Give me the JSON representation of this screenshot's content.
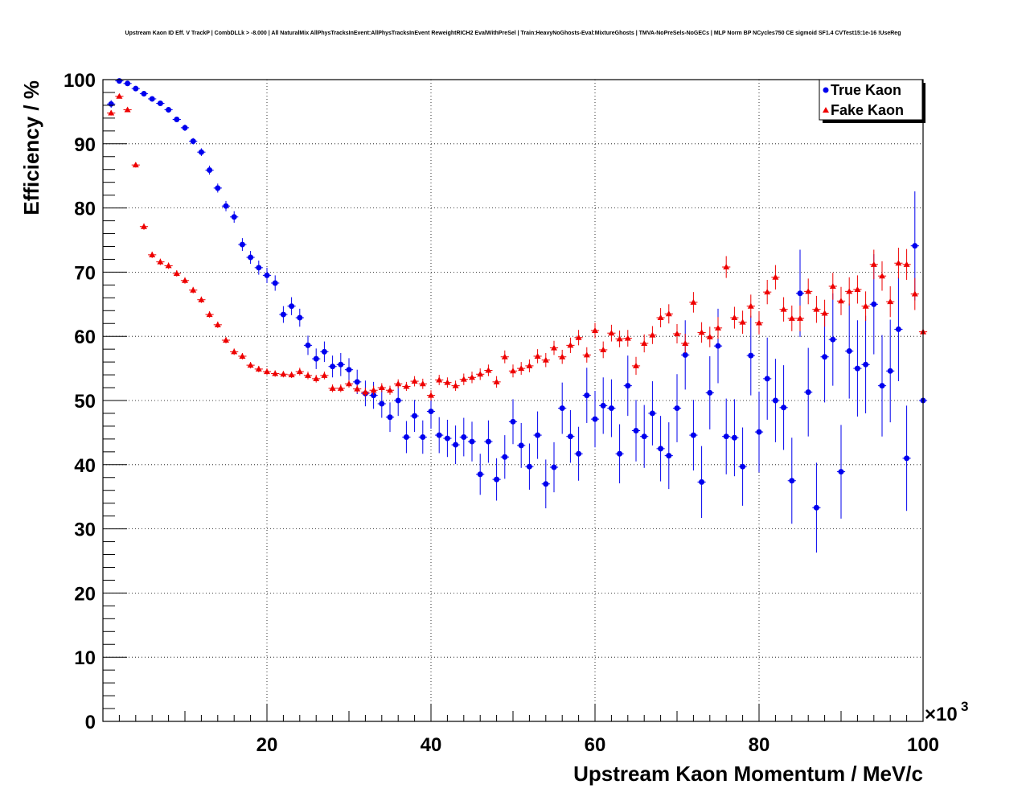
{
  "chart_data": {
    "type": "scatter",
    "title": "Upstream Kaon ID Eff. V TrackP | CombDLLk > -8.000 | All NaturalMix AllPhysTracksInEvent:AllPhysTracksInEvent ReweightRICH2 EvalWithPreSel | Train:HeavyNoGhosts-Eval:MixtureGhosts | TMVA-NoPreSels-NoGECs | MLP Norm BP NCycles750 CE sigmoid SF1.4 CVTest15:1e-16 !UseReg",
    "xlabel": "Upstream Kaon Momentum / MeV/c",
    "ylabel": "Efficiency / %",
    "x_multiplier": "×10",
    "x_multiplier_exp": "3",
    "xlim": [
      0,
      100
    ],
    "ylim": [
      0,
      100
    ],
    "x_ticks": [
      20,
      40,
      60,
      80,
      100
    ],
    "y_ticks": [
      0,
      10,
      20,
      30,
      40,
      50,
      60,
      70,
      80,
      90,
      100
    ],
    "grid": true,
    "legend_position": "top-right",
    "series": [
      {
        "name": "True Kaon",
        "color": "#0000ee",
        "marker": "circle",
        "x": [
          1,
          2,
          3,
          4,
          5,
          6,
          7,
          8,
          9,
          10,
          11,
          12,
          13,
          14,
          15,
          16,
          17,
          18,
          19,
          20,
          21,
          22,
          23,
          24,
          25,
          26,
          27,
          28,
          29,
          30,
          31,
          32,
          33,
          34,
          35,
          36,
          37,
          38,
          39,
          40,
          41,
          42,
          43,
          44,
          45,
          46,
          47,
          48,
          49,
          50,
          51,
          52,
          53,
          54,
          55,
          56,
          57,
          58,
          59,
          60,
          61,
          62,
          63,
          64,
          65,
          66,
          67,
          68,
          69,
          70,
          71,
          72,
          73,
          74,
          75,
          76,
          77,
          78,
          79,
          80,
          81,
          82,
          83,
          84,
          85,
          86,
          87,
          88,
          89,
          90,
          91,
          92,
          93,
          94,
          95,
          96,
          97,
          98,
          99,
          100
        ],
        "y": [
          96.2,
          99.8,
          99.4,
          98.6,
          97.8,
          97.0,
          96.3,
          95.3,
          93.8,
          92.5,
          90.4,
          88.7,
          85.9,
          83.1,
          80.3,
          78.6,
          74.3,
          72.3,
          70.7,
          69.5,
          68.3,
          63.4,
          64.7,
          62.9,
          58.6,
          56.5,
          57.6,
          55.3,
          55.6,
          54.8,
          52.9,
          51.1,
          50.8,
          49.5,
          47.4,
          50.0,
          44.3,
          47.6,
          44.3,
          48.3,
          44.6,
          44.1,
          43.1,
          44.3,
          43.6,
          38.5,
          43.6,
          37.7,
          41.2,
          46.7,
          43.0,
          39.7,
          44.6,
          37.0,
          39.6,
          48.8,
          44.4,
          41.7,
          50.8,
          47.1,
          49.2,
          48.8,
          41.7,
          52.3,
          45.3,
          44.4,
          48.0,
          42.5,
          41.4,
          48.8,
          57.1,
          44.6,
          37.3,
          51.2,
          58.5,
          44.4,
          44.2,
          39.7,
          57.0,
          45.1,
          53.4,
          50.0,
          48.9,
          37.5,
          66.7,
          51.3,
          33.3,
          56.8,
          59.5,
          38.9,
          57.7,
          55.0,
          55.6,
          65.0,
          52.3,
          54.6,
          61.1,
          41.0,
          74.1,
          50.0
        ],
        "err": [
          0.6,
          0.3,
          0.3,
          0.3,
          0.3,
          0.4,
          0.4,
          0.4,
          0.4,
          0.5,
          0.5,
          0.6,
          0.7,
          0.7,
          0.8,
          0.9,
          1.0,
          1.0,
          1.1,
          1.2,
          1.2,
          1.3,
          1.4,
          1.4,
          1.5,
          1.6,
          1.6,
          1.7,
          1.8,
          1.8,
          1.9,
          2.0,
          2.1,
          2.2,
          2.3,
          2.4,
          2.5,
          2.5,
          2.6,
          2.7,
          2.8,
          2.9,
          3.0,
          3.0,
          3.1,
          3.2,
          3.3,
          3.3,
          3.4,
          3.5,
          3.5,
          3.6,
          3.7,
          3.8,
          3.9,
          4.0,
          4.1,
          4.2,
          4.3,
          4.4,
          4.4,
          4.5,
          4.6,
          4.7,
          4.8,
          4.9,
          5.0,
          5.1,
          5.2,
          5.3,
          5.4,
          5.5,
          5.6,
          5.7,
          5.8,
          5.9,
          6.0,
          6.1,
          6.2,
          6.3,
          6.4,
          6.5,
          6.6,
          6.7,
          6.8,
          6.9,
          7.0,
          7.1,
          7.2,
          7.3,
          7.4,
          7.5,
          7.6,
          7.8,
          7.9,
          8.0,
          8.1,
          8.2,
          8.5,
          9.0
        ]
      },
      {
        "name": "Fake Kaon",
        "color": "#ee0000",
        "marker": "triangle",
        "x": [
          1,
          2,
          3,
          4,
          5,
          6,
          7,
          8,
          9,
          10,
          11,
          12,
          13,
          14,
          15,
          16,
          17,
          18,
          19,
          20,
          21,
          22,
          23,
          24,
          25,
          26,
          27,
          28,
          29,
          30,
          31,
          32,
          33,
          34,
          35,
          36,
          37,
          38,
          39,
          40,
          41,
          42,
          43,
          44,
          45,
          46,
          47,
          48,
          49,
          50,
          51,
          52,
          53,
          54,
          55,
          56,
          57,
          58,
          59,
          60,
          61,
          62,
          63,
          64,
          65,
          66,
          67,
          68,
          69,
          70,
          71,
          72,
          73,
          74,
          75,
          76,
          77,
          78,
          79,
          80,
          81,
          82,
          83,
          84,
          85,
          86,
          87,
          88,
          89,
          90,
          91,
          92,
          93,
          94,
          95,
          96,
          97,
          98,
          99,
          100
        ],
        "y": [
          94.8,
          97.4,
          95.3,
          86.7,
          77.1,
          72.7,
          71.6,
          71.0,
          69.8,
          68.7,
          67.2,
          65.7,
          63.4,
          61.8,
          59.4,
          57.6,
          56.9,
          55.5,
          54.9,
          54.5,
          54.2,
          54.1,
          54.0,
          54.5,
          53.9,
          53.4,
          53.9,
          51.9,
          51.9,
          52.6,
          51.8,
          51.3,
          51.6,
          52.0,
          51.6,
          52.6,
          52.2,
          53.0,
          52.6,
          50.8,
          53.2,
          52.8,
          52.3,
          53.3,
          53.6,
          54.1,
          54.7,
          52.9,
          56.8,
          54.6,
          55.0,
          55.4,
          56.9,
          56.3,
          58.2,
          56.8,
          58.6,
          59.8,
          57.1,
          60.9,
          57.9,
          60.5,
          59.6,
          59.7,
          55.4,
          58.9,
          60.2,
          62.9,
          63.5,
          60.4,
          58.9,
          65.3,
          60.6,
          59.9,
          61.3,
          70.8,
          62.9,
          62.2,
          64.7,
          62.1,
          66.9,
          69.2,
          64.2,
          62.8,
          62.8,
          67.0,
          64.2,
          63.6,
          67.8,
          65.5,
          67.0,
          67.3,
          64.7,
          71.2,
          69.4,
          65.4,
          71.4,
          71.2,
          66.6,
          60.7
        ],
        "err": [
          0.4,
          0.3,
          0.3,
          0.4,
          0.5,
          0.5,
          0.5,
          0.5,
          0.5,
          0.5,
          0.5,
          0.5,
          0.5,
          0.5,
          0.5,
          0.5,
          0.5,
          0.5,
          0.5,
          0.5,
          0.5,
          0.5,
          0.5,
          0.6,
          0.6,
          0.6,
          0.6,
          0.6,
          0.6,
          0.6,
          0.6,
          0.7,
          0.7,
          0.7,
          0.7,
          0.7,
          0.7,
          0.8,
          0.8,
          0.8,
          0.8,
          0.8,
          0.8,
          0.9,
          0.9,
          0.9,
          0.9,
          0.9,
          1.0,
          1.0,
          1.0,
          1.0,
          1.1,
          1.1,
          1.1,
          1.1,
          1.2,
          1.2,
          1.2,
          1.2,
          1.3,
          1.3,
          1.3,
          1.3,
          1.4,
          1.4,
          1.4,
          1.5,
          1.5,
          1.5,
          1.5,
          1.6,
          1.6,
          1.6,
          1.7,
          1.7,
          1.7,
          1.8,
          1.8,
          1.8,
          1.9,
          1.9,
          1.9,
          2.0,
          2.0,
          2.0,
          2.1,
          2.1,
          2.1,
          2.2,
          2.2,
          2.2,
          2.3,
          2.3,
          2.3,
          2.4,
          2.4,
          2.4,
          2.5,
          2.5
        ]
      }
    ]
  }
}
